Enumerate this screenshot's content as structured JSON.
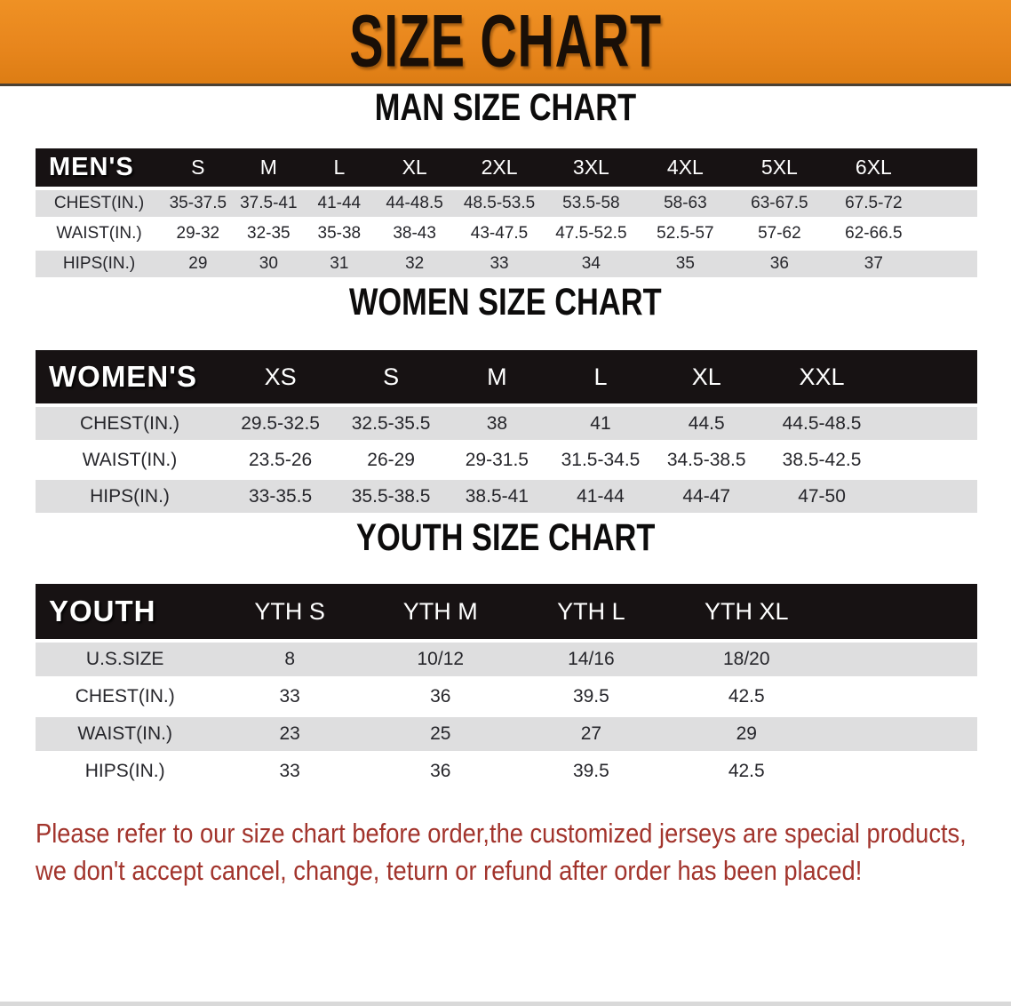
{
  "banner": {
    "title": "SIZE CHART"
  },
  "colors": {
    "banner_orange": "#E8861D",
    "table_header_black": "#171213",
    "row_stripe_gray": "#DEDEDF",
    "note_red": "#A2342C"
  },
  "sections": [
    {
      "heading": "MAN SIZE CHART",
      "group_label": "MEN'S",
      "columns": [
        "S",
        "M",
        "L",
        "XL",
        "2XL",
        "3XL",
        "4XL",
        "5XL",
        "6XL"
      ],
      "rows": [
        {
          "label": "CHEST(IN.)",
          "values": [
            "35-37.5",
            "37.5-41",
            "41-44",
            "44-48.5",
            "48.5-53.5",
            "53.5-58",
            "58-63",
            "63-67.5",
            "67.5-72"
          ]
        },
        {
          "label": "WAIST(IN.)",
          "values": [
            "29-32",
            "32-35",
            "35-38",
            "38-43",
            "43-47.5",
            "47.5-52.5",
            "52.5-57",
            "57-62",
            "62-66.5"
          ]
        },
        {
          "label": "HIPS(IN.)",
          "values": [
            "29",
            "30",
            "31",
            "32",
            "33",
            "34",
            "35",
            "36",
            "37"
          ]
        }
      ]
    },
    {
      "heading": "WOMEN SIZE CHART",
      "group_label": "WOMEN'S",
      "columns": [
        "XS",
        "S",
        "M",
        "L",
        "XL",
        "XXL"
      ],
      "rows": [
        {
          "label": "CHEST(IN.)",
          "values": [
            "29.5-32.5",
            "32.5-35.5",
            "38",
            "41",
            "44.5",
            "44.5-48.5"
          ]
        },
        {
          "label": "WAIST(IN.)",
          "values": [
            "23.5-26",
            "26-29",
            "29-31.5",
            "31.5-34.5",
            "34.5-38.5",
            "38.5-42.5"
          ]
        },
        {
          "label": "HIPS(IN.)",
          "values": [
            "33-35.5",
            "35.5-38.5",
            "38.5-41",
            "41-44",
            "44-47",
            "47-50"
          ]
        }
      ]
    },
    {
      "heading": "YOUTH SIZE CHART",
      "group_label": "YOUTH",
      "columns": [
        "YTH S",
        "YTH M",
        "YTH L",
        "YTH XL"
      ],
      "rows": [
        {
          "label": "U.S.SIZE",
          "values": [
            "8",
            "10/12",
            "14/16",
            "18/20"
          ]
        },
        {
          "label": "CHEST(IN.)",
          "values": [
            "33",
            "36",
            "39.5",
            "42.5"
          ]
        },
        {
          "label": "WAIST(IN.)",
          "values": [
            "23",
            "25",
            "27",
            "29"
          ]
        },
        {
          "label": "HIPS(IN.)",
          "values": [
            "33",
            "36",
            "39.5",
            "42.5"
          ]
        }
      ]
    }
  ],
  "note": {
    "lines": [
      "Please refer to our size chart before order,the customized jerseys are special products,",
      "we don't accept cancel, change, teturn or refund after order has been placed!"
    ]
  }
}
